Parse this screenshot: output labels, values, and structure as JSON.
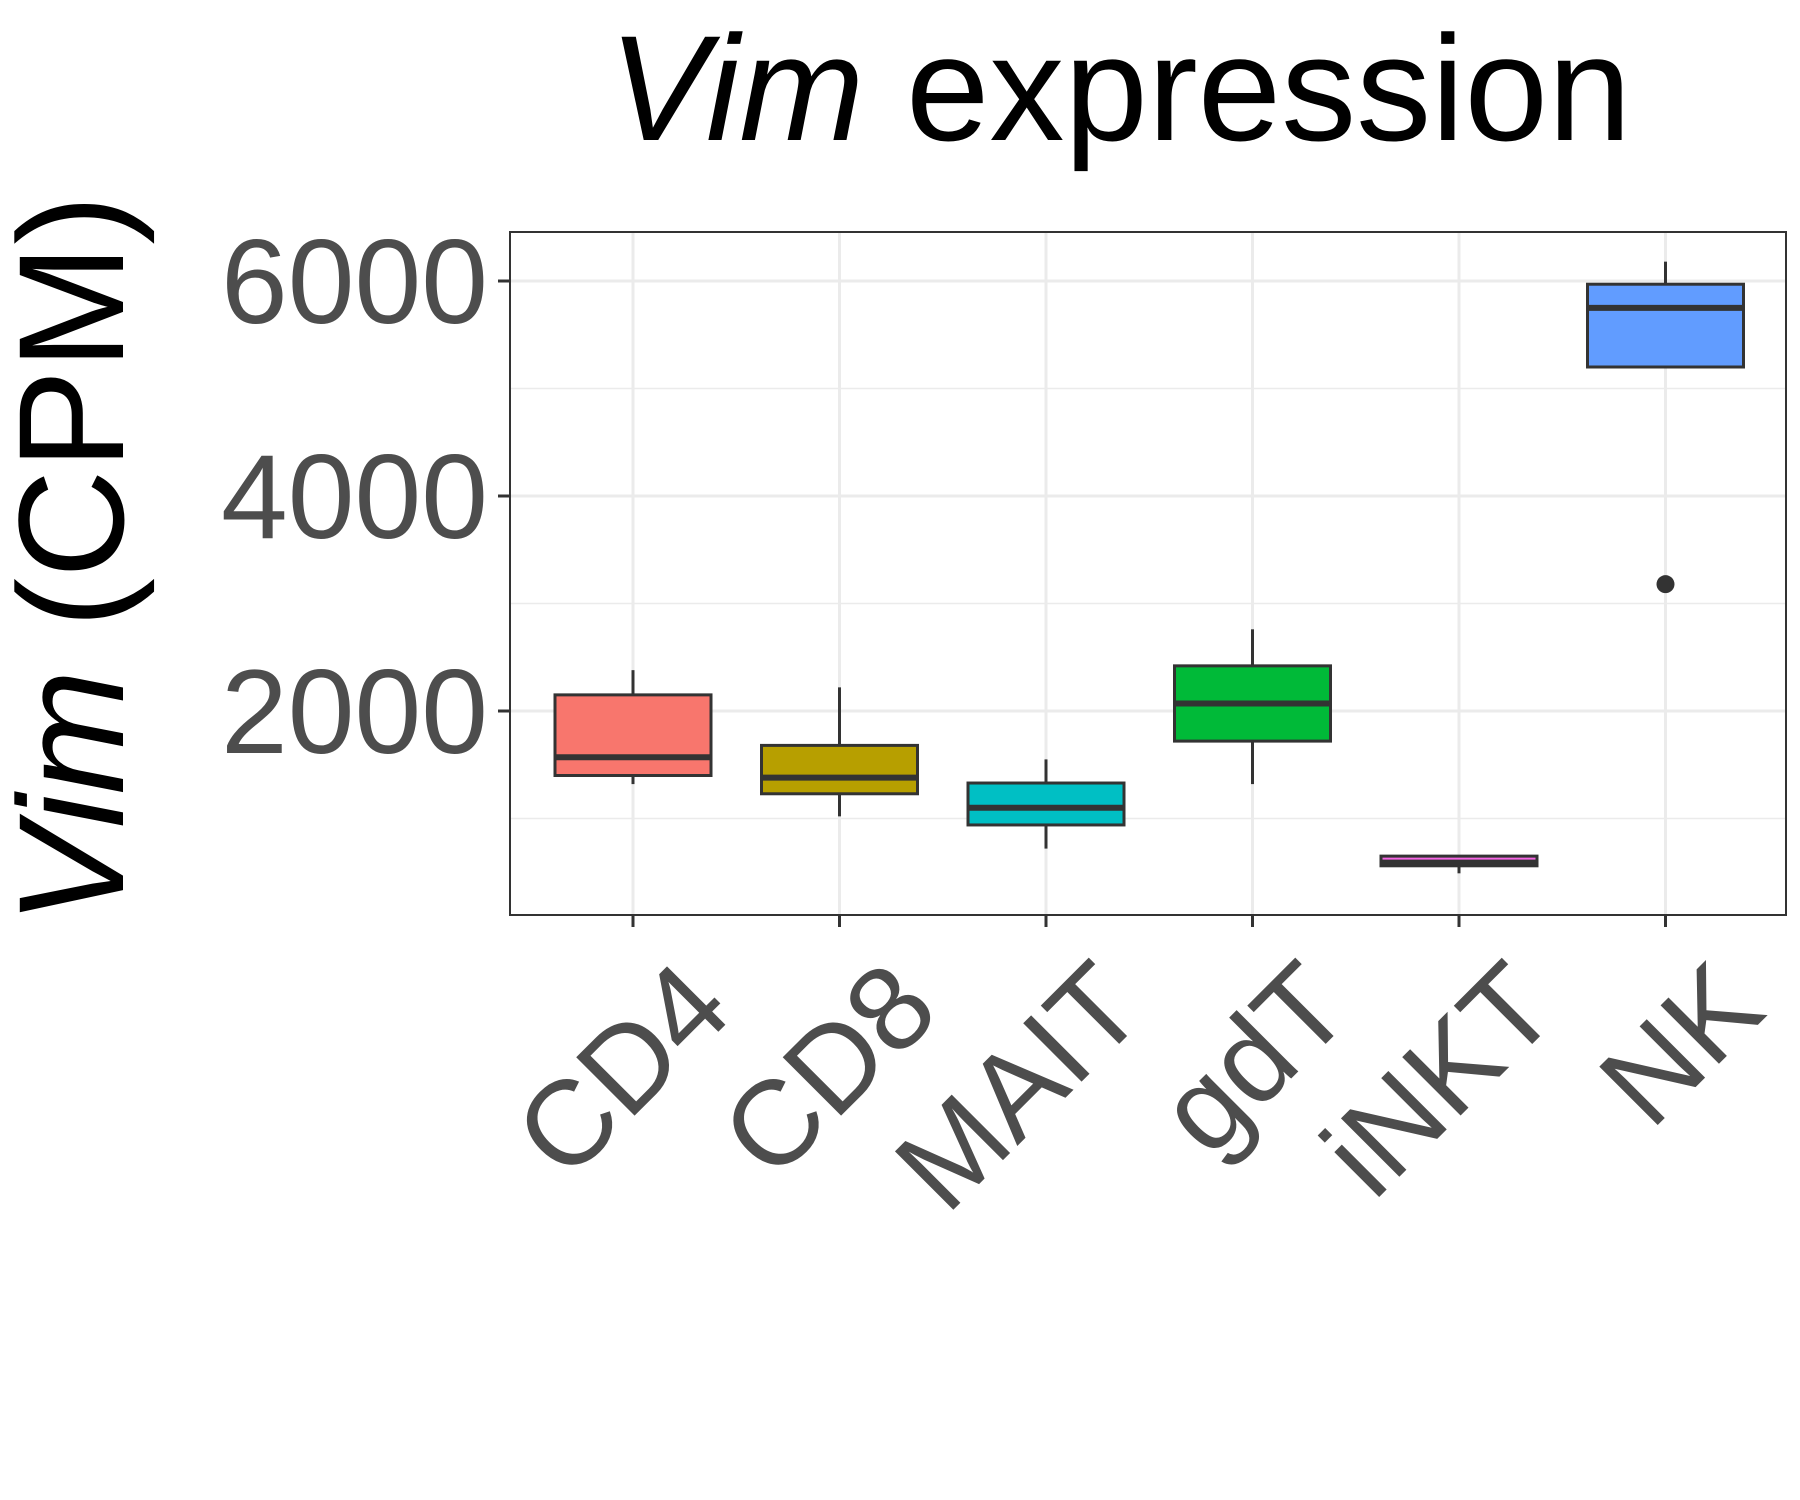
{
  "chart_data": {
    "type": "box",
    "title": {
      "italic": "Vim",
      "rest": " expression"
    },
    "ylabel": {
      "italic": "Vim",
      "rest": " (CPM)"
    },
    "xlabel": "",
    "ylim": [
      -500,
      6000
    ],
    "yticks": [
      2000,
      4000,
      6000
    ],
    "grid": true,
    "legend": "none",
    "categories": [
      "CD4",
      "CD8",
      "MAIT",
      "gdT",
      "iNKT",
      "NK"
    ],
    "series": [
      {
        "category": "CD4",
        "color": "#F8766D",
        "whisker_low": 1320,
        "q1": 1400,
        "median": 1570,
        "q3": 2150,
        "whisker_high": 2380,
        "outliers": []
      },
      {
        "category": "CD8",
        "color": "#B79F00",
        "whisker_low": 1020,
        "q1": 1230,
        "median": 1380,
        "q3": 1680,
        "whisker_high": 2220,
        "outliers": []
      },
      {
        "category": "MAIT",
        "color": "#00BFC4",
        "whisker_low": 720,
        "q1": 940,
        "median": 1100,
        "q3": 1330,
        "whisker_high": 1550,
        "outliers": []
      },
      {
        "category": "gdT",
        "color": "#00BA38",
        "whisker_low": 1320,
        "q1": 1720,
        "median": 2070,
        "q3": 2420,
        "whisker_high": 2760,
        "outliers": []
      },
      {
        "category": "iNKT",
        "color": "#F564E3",
        "whisker_low": 490,
        "q1": 560,
        "median": 590,
        "q3": 650,
        "whisker_high": 650,
        "outliers": []
      },
      {
        "category": "NK",
        "color": "#619CFF",
        "whisker_low": 5200,
        "q1": 5200,
        "median": 5750,
        "q3": 5970,
        "whisker_high": 6180,
        "outliers": [
          3180
        ]
      }
    ]
  }
}
